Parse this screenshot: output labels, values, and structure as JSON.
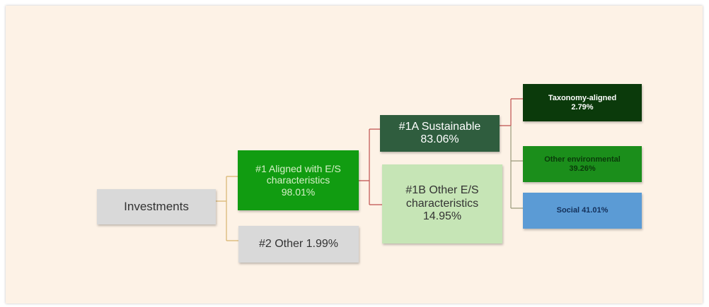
{
  "nodes": [
    {
      "id": "investments",
      "lines": [
        "Investments"
      ]
    },
    {
      "id": "aligned",
      "lines": [
        "#1 Aligned with E/S",
        "characteristics",
        "98.01%"
      ]
    },
    {
      "id": "other",
      "lines": [
        "#2 Other 1.99%"
      ]
    },
    {
      "id": "sustainable",
      "lines": [
        "#1A Sustainable",
        "83.06%"
      ]
    },
    {
      "id": "other-es",
      "lines": [
        "#1B Other E/S",
        "characteristics",
        "14.95%"
      ]
    },
    {
      "id": "taxonomy",
      "lines": [
        "Taxonomy-aligned",
        "2.79%"
      ]
    },
    {
      "id": "other-env",
      "lines": [
        "Other environmental",
        "39.26%"
      ]
    },
    {
      "id": "social",
      "lines": [
        "Social 41.01%"
      ]
    }
  ]
}
